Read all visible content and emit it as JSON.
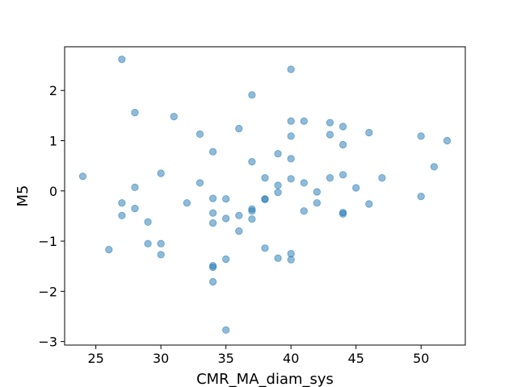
{
  "chart_data": {
    "type": "scatter",
    "xlabel": "CMR_MA_diam_sys",
    "ylabel": "M5",
    "xlim": [
      22.6,
      53.4
    ],
    "ylim": [
      -3.07,
      2.87
    ],
    "xticks": [
      25,
      30,
      35,
      40,
      45,
      50
    ],
    "yticks": [
      -3,
      -2,
      -1,
      0,
      1,
      2
    ],
    "xtick_labels": [
      "25",
      "30",
      "35",
      "40",
      "45",
      "50"
    ],
    "ytick_labels": [
      "−3",
      "−2",
      "−1",
      "0",
      "1",
      "2"
    ],
    "grid": false,
    "point_color": "#1f77b4",
    "point_opacity": 0.5,
    "points": [
      [
        24,
        0.29
      ],
      [
        26,
        -1.17
      ],
      [
        27,
        2.62
      ],
      [
        27,
        -0.24
      ],
      [
        27,
        -0.49
      ],
      [
        28,
        1.56
      ],
      [
        28,
        0.07
      ],
      [
        28,
        -0.35
      ],
      [
        29,
        -0.62
      ],
      [
        29,
        -1.05
      ],
      [
        30,
        0.35
      ],
      [
        30,
        -1.05
      ],
      [
        30,
        -1.27
      ],
      [
        31,
        1.48
      ],
      [
        32,
        -0.24
      ],
      [
        33,
        1.13
      ],
      [
        33,
        0.16
      ],
      [
        34,
        0.78
      ],
      [
        34,
        -0.15
      ],
      [
        34,
        -0.44
      ],
      [
        34,
        -0.64
      ],
      [
        34,
        -1.49
      ],
      [
        34,
        -1.52
      ],
      [
        34,
        -1.81
      ],
      [
        35,
        -0.16
      ],
      [
        35,
        -0.55
      ],
      [
        35,
        -1.36
      ],
      [
        35,
        -2.77
      ],
      [
        36,
        1.24
      ],
      [
        36,
        -0.49
      ],
      [
        36,
        -0.8
      ],
      [
        37,
        1.91
      ],
      [
        37,
        0.58
      ],
      [
        37,
        -0.36
      ],
      [
        37,
        -0.4
      ],
      [
        37,
        -0.56
      ],
      [
        38,
        0.26
      ],
      [
        38,
        -0.16
      ],
      [
        38,
        -0.17
      ],
      [
        38,
        -1.14
      ],
      [
        39,
        0.74
      ],
      [
        39,
        0.11
      ],
      [
        39,
        -0.03
      ],
      [
        39,
        -1.34
      ],
      [
        40,
        2.42
      ],
      [
        40,
        1.39
      ],
      [
        40,
        1.09
      ],
      [
        40,
        0.64
      ],
      [
        40,
        0.24
      ],
      [
        40,
        -1.25
      ],
      [
        40,
        -1.37
      ],
      [
        41,
        1.39
      ],
      [
        41,
        0.16
      ],
      [
        41,
        -0.4
      ],
      [
        42,
        -0.02
      ],
      [
        42,
        -0.24
      ],
      [
        43,
        1.36
      ],
      [
        43,
        1.12
      ],
      [
        43,
        0.26
      ],
      [
        44,
        1.28
      ],
      [
        44,
        0.92
      ],
      [
        44,
        0.32
      ],
      [
        44,
        -0.43
      ],
      [
        44,
        -0.46
      ],
      [
        45,
        0.06
      ],
      [
        46,
        1.16
      ],
      [
        46,
        -0.26
      ],
      [
        47,
        0.26
      ],
      [
        50,
        1.09
      ],
      [
        50,
        -0.11
      ],
      [
        51,
        0.48
      ],
      [
        52,
        1.0
      ]
    ]
  }
}
